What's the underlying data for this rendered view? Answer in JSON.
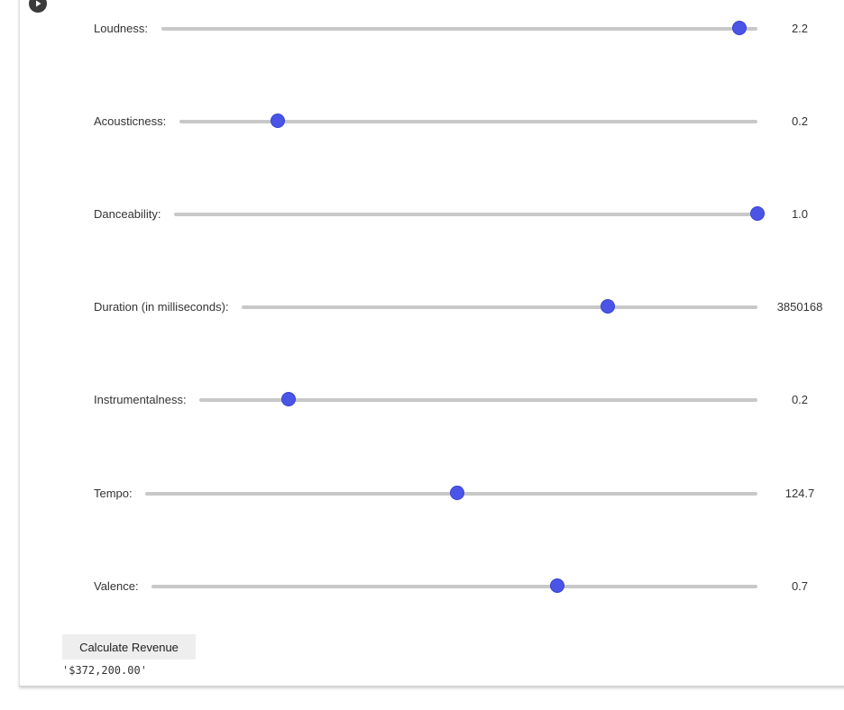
{
  "sliders": [
    {
      "label": "Loudness:",
      "value": "2.2",
      "fraction": 0.97
    },
    {
      "label": "Acousticness:",
      "value": "0.2",
      "fraction": 0.17
    },
    {
      "label": "Danceability:",
      "value": "1.0",
      "fraction": 1.0
    },
    {
      "label": "Duration (in milliseconds):",
      "value": "3850168",
      "fraction": 0.71
    },
    {
      "label": "Instrumentalness:",
      "value": "0.2",
      "fraction": 0.16
    },
    {
      "label": "Tempo:",
      "value": "124.7",
      "fraction": 0.51
    },
    {
      "label": "Valence:",
      "value": "0.7",
      "fraction": 0.67
    }
  ],
  "calculate_button": {
    "label": "Calculate Revenue"
  },
  "output": {
    "text": "'$372,200.00'"
  },
  "colors": {
    "handle": "#4a55e8",
    "track": "#c8c8c8",
    "button_bg": "#eeeeee"
  },
  "icons": {
    "run": "play-circle-icon"
  }
}
